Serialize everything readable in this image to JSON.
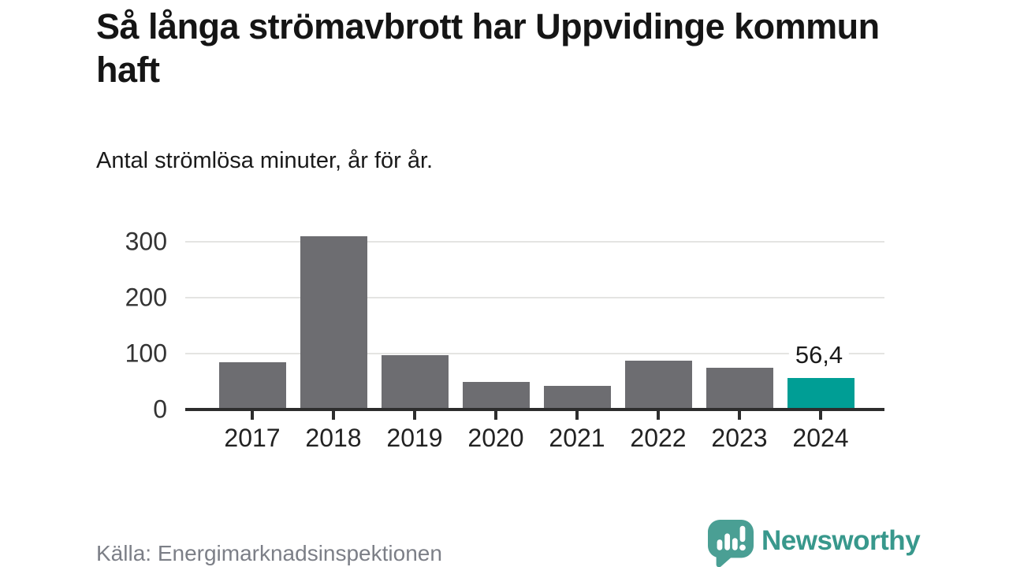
{
  "header": {
    "title": "Så långa strömavbrott har Uppvidinge kommun haft",
    "subtitle": "Antal strömlösa minuter, år för år."
  },
  "chart_data": {
    "type": "bar",
    "title": "Så långa strömavbrott har Uppvidinge kommun haft",
    "subtitle": "Antal strömlösa minuter, år för år.",
    "categories": [
      "2017",
      "2018",
      "2019",
      "2020",
      "2021",
      "2022",
      "2023",
      "2024"
    ],
    "values": [
      85,
      310,
      97,
      50,
      42,
      87,
      75,
      56.4
    ],
    "highlight_index": 7,
    "highlight_value_label": "56,4",
    "yticks": [
      0,
      100,
      200,
      300
    ],
    "ytick_labels": [
      "0",
      "100",
      "200",
      "300"
    ],
    "ylim": [
      0,
      324
    ],
    "xlabel": "",
    "ylabel": "",
    "grid": "horizontal",
    "legend": "none",
    "bar_color": "#6d6d71",
    "highlight_color": "#009e95",
    "gridline_color": "#e4e4e2",
    "axis_color": "#2d2d2d"
  },
  "footer": {
    "source": "Källa: Energimarknadsinspektionen",
    "brand": "Newsworthy",
    "brand_color": "#38988c",
    "brand_icon_color": "#4a9f94"
  }
}
